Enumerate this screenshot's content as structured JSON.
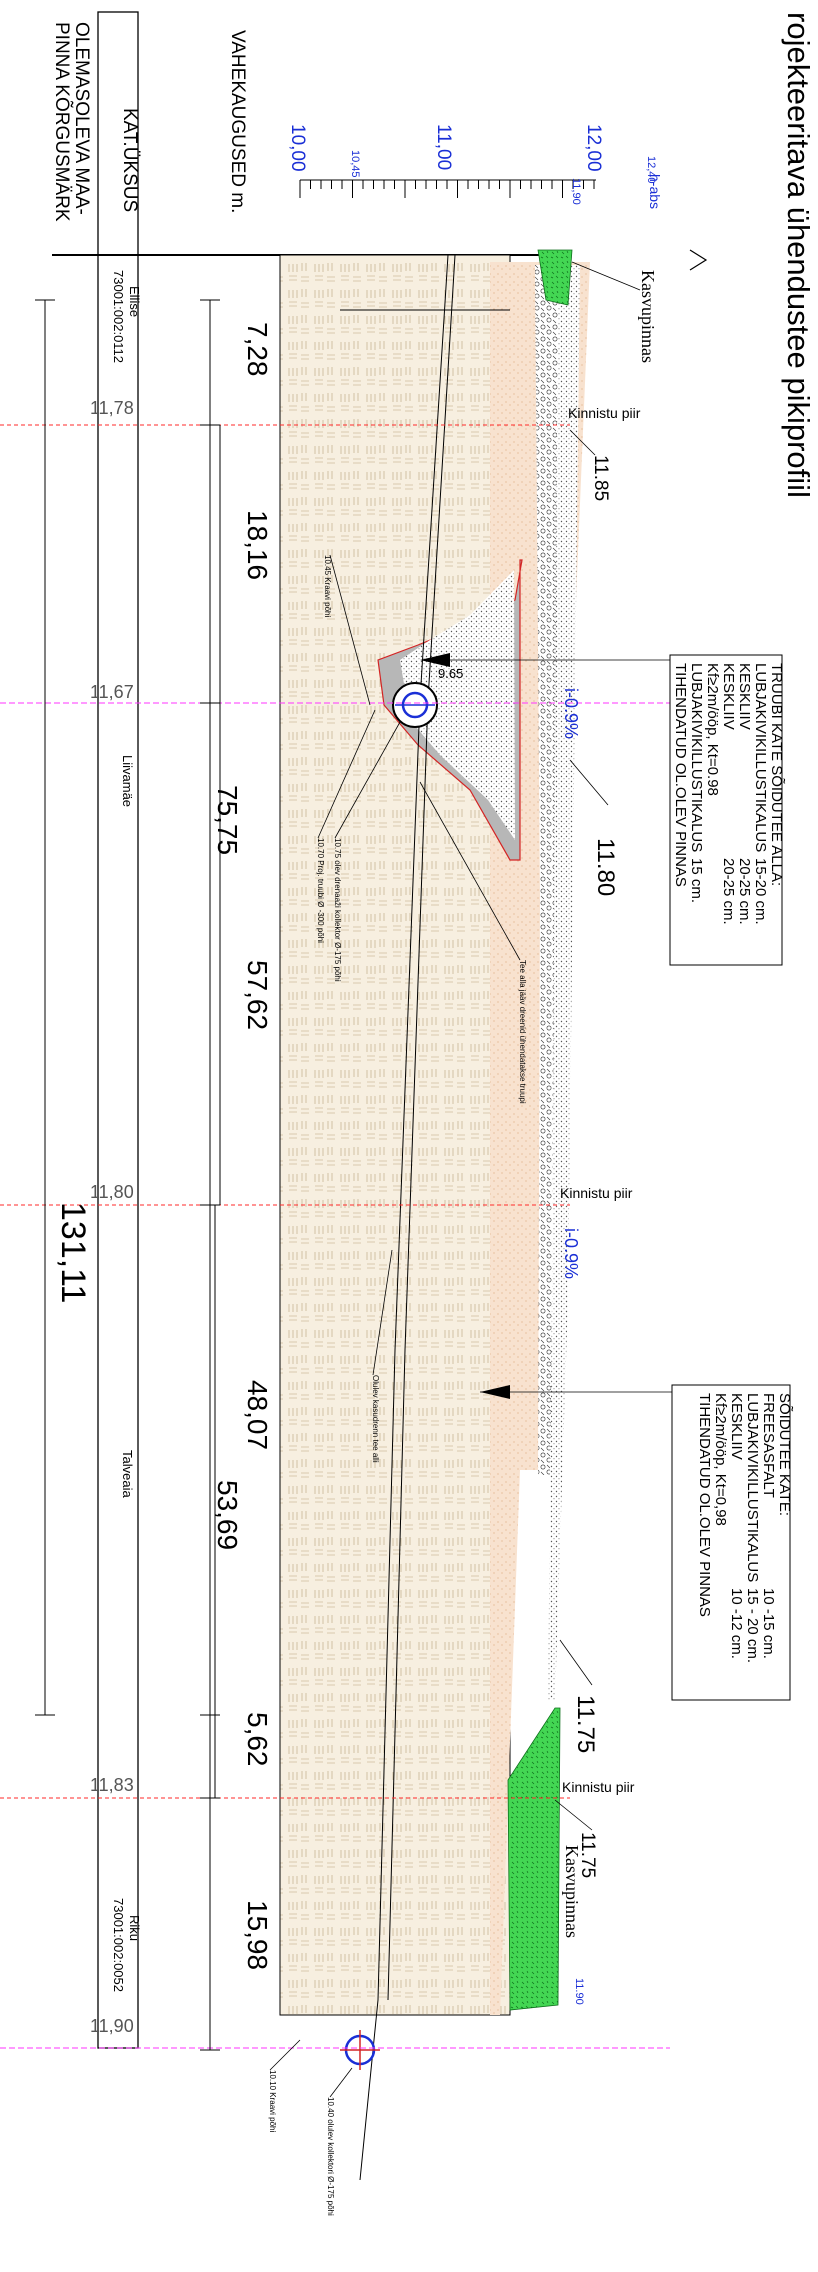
{
  "title": "rojekteeritava ühendustee pikiprofiil",
  "row_labels": {
    "distances": "VAHEKAUGUSED m.",
    "cadastral": "KAT.ÜKSUS",
    "ground_elevation": "OLEMASOLEVA MAA-PINNA KÕRGUSMÄRK"
  },
  "scale": {
    "label": "h-abs",
    "values": [
      "12,40",
      "12,00",
      "11,90",
      "11,00",
      "10,45",
      "10,00"
    ]
  },
  "ground_elevations": [
    "11,78",
    "11,67",
    "11,80",
    "11,83",
    "11,90"
  ],
  "segment_distances": [
    "7,28",
    "18,16",
    "57,62",
    "48,07",
    "5,62",
    "15,98"
  ],
  "cumulative_distances": [
    "75,75",
    "53,69"
  ],
  "total_distance": "131,11",
  "cadastral_units": [
    {
      "name": "Ellise",
      "code": "73001:002:0112"
    },
    {
      "name": "Liivamäe",
      "code": ""
    },
    {
      "name": "Talveaia",
      "code": ""
    },
    {
      "name": "Riku",
      "code": "73001:002:0052"
    }
  ],
  "annotations": {
    "topsoil_1": "Kasvupinnas",
    "topsoil_2": "Kasvupinnas",
    "boundary_1": "Kinnistu piir",
    "boundary_2": "Kinnistu piir",
    "boundary_3": "Kinnistu piir",
    "elev_1185": "11.85",
    "elev_1180": "11.80",
    "elev_1175a": "11.75",
    "elev_1175b": "11.75",
    "elev_1190": "11.90",
    "elev_965": "9.65",
    "slope_1": "i-0.9%",
    "slope_2": "i-0.9%",
    "ditch_1045": "10.45 Kraavi põhi",
    "collector_1075": "10.75 olev drenaaži kollektor Ø-175 põhi",
    "pipe_1070": "10.70 Proj. truubi Ø -300 põhi",
    "underdrain": "Tee alla jääv dreenid ühendatakse truupi",
    "existing_drain": "Olulev kasudrenn tee alli",
    "ditch_1010": "10.10 Kraavi põhi",
    "collector_1040": "10.40 olulev kollektori Ø-175 põhi"
  },
  "spec_culvert": {
    "title": "TRUUBI KATE SÕIDUTEE ALLA:",
    "lines": [
      {
        "label": "LUBJAKIVIKILLUSTIKALUS",
        "value": "15-20 cm."
      },
      {
        "label": "KESKLIIV",
        "value": "20-25 cm."
      },
      {
        "label": "KESKLIIV",
        "value": "20-25 cm."
      },
      {
        "label": "Kf≥2m/ööp, Kt=0.98",
        "value": ""
      },
      {
        "label": "LUBJAKIVIKILLUSTIKALUS",
        "value": "15 cm."
      },
      {
        "label": "TIHENDATUD OL.OLEV PINNAS",
        "value": ""
      }
    ]
  },
  "spec_road": {
    "title": "SÕIDUTEE KATE:",
    "lines": [
      {
        "label": "FREESASFALT",
        "value": "10 -15 cm."
      },
      {
        "label": "LUBJAKIVIKILLUSTIKALUS",
        "value": "15 - 20 cm."
      },
      {
        "label": "KESKLIIV",
        "value": "10 -12 cm."
      },
      {
        "label": "Kf≥2m/ööp, Kt=0,98",
        "value": ""
      },
      {
        "label": "TIHENDATUD OL.OLEV PINNAS",
        "value": ""
      }
    ]
  },
  "colors": {
    "ground_line": "#ff2a2a",
    "pipe_axis": "#ff33ff",
    "soil_fill": "#f7efe0",
    "sand_fill": "#f8e2cf",
    "topsoil_fill": "#39d04a",
    "blue_text": "#1a2fd6"
  }
}
